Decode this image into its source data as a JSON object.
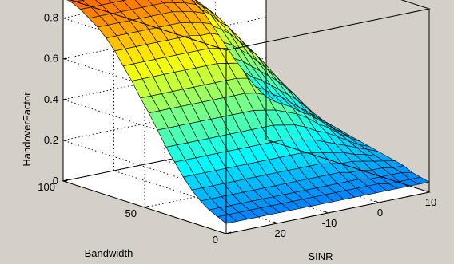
{
  "chart_data": {
    "type": "surface",
    "xlabel": "SINR",
    "ylabel": "Bandwidth",
    "zlabel": "HandoverFactor",
    "x_ticks": [
      "-20",
      "-10",
      "0",
      "10"
    ],
    "y_ticks": [
      "0",
      "50",
      "100"
    ],
    "z_ticks": [
      "0",
      "0.2",
      "0.4",
      "0.6",
      "0.8"
    ],
    "xlim": [
      -30,
      10
    ],
    "ylim": [
      0,
      100
    ],
    "zlim": [
      0,
      0.9
    ],
    "grid": true,
    "colormap": "jet",
    "background": "#d4d0c8",
    "axes_face": "#ffffff",
    "mesh": {
      "sinr": [
        -30,
        -27.9,
        -25.8,
        -23.7,
        -21.6,
        -19.5,
        -17.4,
        -15.3,
        -13.2,
        -11.1,
        -8.9,
        -6.8,
        -4.7,
        -2.6,
        -0.5,
        1.6,
        3.7,
        5.8,
        7.9,
        10
      ],
      "bandwidth": [
        0,
        5.3,
        10.5,
        15.8,
        21.1,
        26.3,
        31.6,
        36.8,
        42.1,
        47.4,
        52.6,
        57.9,
        63.2,
        68.4,
        73.7,
        78.9,
        84.2,
        89.5,
        94.7,
        100
      ],
      "handover_factor": [
        [
          0.05,
          0.05,
          0.05,
          0.05,
          0.05,
          0.05,
          0.05,
          0.05,
          0.05,
          0.05,
          0.05,
          0.05,
          0.05,
          0.05,
          0.05,
          0.05,
          0.05,
          0.05,
          0.05,
          0.05
        ],
        [
          0.07,
          0.07,
          0.07,
          0.07,
          0.07,
          0.07,
          0.07,
          0.07,
          0.07,
          0.07,
          0.07,
          0.07,
          0.07,
          0.07,
          0.07,
          0.07,
          0.06,
          0.06,
          0.06,
          0.06
        ],
        [
          0.09,
          0.09,
          0.09,
          0.09,
          0.09,
          0.09,
          0.09,
          0.09,
          0.09,
          0.09,
          0.09,
          0.09,
          0.09,
          0.09,
          0.09,
          0.08,
          0.08,
          0.08,
          0.08,
          0.07
        ],
        [
          0.12,
          0.12,
          0.12,
          0.12,
          0.12,
          0.12,
          0.12,
          0.12,
          0.12,
          0.12,
          0.12,
          0.12,
          0.12,
          0.12,
          0.11,
          0.11,
          0.1,
          0.1,
          0.09,
          0.09
        ],
        [
          0.16,
          0.16,
          0.16,
          0.16,
          0.16,
          0.16,
          0.16,
          0.16,
          0.16,
          0.16,
          0.16,
          0.16,
          0.16,
          0.15,
          0.14,
          0.14,
          0.13,
          0.12,
          0.11,
          0.1
        ],
        [
          0.21,
          0.21,
          0.21,
          0.21,
          0.21,
          0.21,
          0.21,
          0.21,
          0.21,
          0.21,
          0.21,
          0.21,
          0.2,
          0.19,
          0.18,
          0.17,
          0.15,
          0.14,
          0.12,
          0.11
        ],
        [
          0.27,
          0.27,
          0.27,
          0.27,
          0.27,
          0.27,
          0.27,
          0.27,
          0.27,
          0.27,
          0.27,
          0.26,
          0.25,
          0.24,
          0.22,
          0.2,
          0.18,
          0.16,
          0.14,
          0.12
        ],
        [
          0.33,
          0.33,
          0.33,
          0.33,
          0.33,
          0.33,
          0.33,
          0.33,
          0.33,
          0.33,
          0.33,
          0.32,
          0.31,
          0.29,
          0.26,
          0.24,
          0.21,
          0.18,
          0.15,
          0.13
        ],
        [
          0.4,
          0.4,
          0.4,
          0.4,
          0.4,
          0.4,
          0.4,
          0.4,
          0.4,
          0.4,
          0.39,
          0.38,
          0.36,
          0.34,
          0.31,
          0.27,
          0.24,
          0.2,
          0.17,
          0.14
        ],
        [
          0.47,
          0.47,
          0.47,
          0.47,
          0.47,
          0.47,
          0.47,
          0.47,
          0.47,
          0.47,
          0.46,
          0.44,
          0.42,
          0.39,
          0.35,
          0.31,
          0.27,
          0.22,
          0.18,
          0.15
        ],
        [
          0.53,
          0.53,
          0.53,
          0.53,
          0.53,
          0.53,
          0.53,
          0.53,
          0.53,
          0.53,
          0.52,
          0.5,
          0.47,
          0.44,
          0.4,
          0.35,
          0.29,
          0.24,
          0.2,
          0.16
        ],
        [
          0.6,
          0.6,
          0.6,
          0.6,
          0.6,
          0.6,
          0.6,
          0.6,
          0.6,
          0.59,
          0.58,
          0.56,
          0.53,
          0.49,
          0.44,
          0.38,
          0.32,
          0.26,
          0.21,
          0.16
        ],
        [
          0.66,
          0.66,
          0.66,
          0.66,
          0.66,
          0.66,
          0.66,
          0.66,
          0.66,
          0.65,
          0.64,
          0.61,
          0.58,
          0.53,
          0.47,
          0.41,
          0.35,
          0.28,
          0.22,
          0.17
        ],
        [
          0.72,
          0.72,
          0.72,
          0.72,
          0.72,
          0.72,
          0.72,
          0.72,
          0.71,
          0.71,
          0.69,
          0.66,
          0.62,
          0.57,
          0.51,
          0.44,
          0.37,
          0.3,
          0.23,
          0.18
        ],
        [
          0.77,
          0.77,
          0.77,
          0.77,
          0.77,
          0.77,
          0.77,
          0.77,
          0.76,
          0.75,
          0.73,
          0.7,
          0.66,
          0.6,
          0.54,
          0.46,
          0.39,
          0.31,
          0.24,
          0.19
        ],
        [
          0.81,
          0.81,
          0.81,
          0.81,
          0.81,
          0.81,
          0.81,
          0.81,
          0.8,
          0.79,
          0.77,
          0.74,
          0.69,
          0.63,
          0.56,
          0.48,
          0.4,
          0.32,
          0.25,
          0.19
        ],
        [
          0.84,
          0.84,
          0.84,
          0.84,
          0.84,
          0.84,
          0.84,
          0.84,
          0.83,
          0.82,
          0.8,
          0.77,
          0.72,
          0.66,
          0.58,
          0.5,
          0.41,
          0.33,
          0.26,
          0.2
        ],
        [
          0.87,
          0.87,
          0.87,
          0.87,
          0.87,
          0.87,
          0.87,
          0.87,
          0.86,
          0.85,
          0.83,
          0.79,
          0.74,
          0.67,
          0.6,
          0.51,
          0.42,
          0.34,
          0.26,
          0.2
        ],
        [
          0.89,
          0.89,
          0.89,
          0.89,
          0.89,
          0.89,
          0.89,
          0.89,
          0.88,
          0.87,
          0.84,
          0.81,
          0.75,
          0.69,
          0.61,
          0.52,
          0.43,
          0.34,
          0.27,
          0.2
        ],
        [
          0.9,
          0.9,
          0.9,
          0.9,
          0.9,
          0.9,
          0.9,
          0.9,
          0.89,
          0.88,
          0.85,
          0.82,
          0.76,
          0.7,
          0.61,
          0.52,
          0.43,
          0.35,
          0.27,
          0.21
        ]
      ]
    }
  }
}
